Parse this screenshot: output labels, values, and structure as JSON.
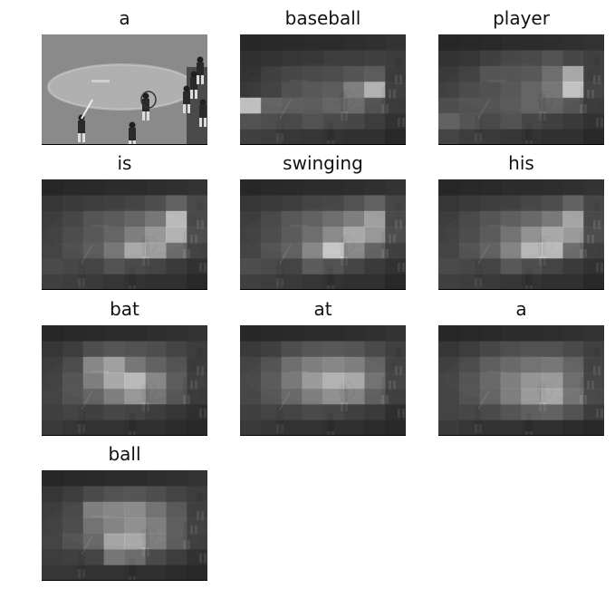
{
  "figure": {
    "panels": [
      {
        "word": "a",
        "scene": "original",
        "attention": null
      },
      {
        "word": "baseball",
        "scene": "heatmap",
        "attention": [
          [
            0.05,
            0.06,
            0.07,
            0.08,
            0.08,
            0.09,
            0.1,
            0.12
          ],
          [
            0.1,
            0.12,
            0.14,
            0.15,
            0.18,
            0.18,
            0.2,
            0.18
          ],
          [
            0.12,
            0.18,
            0.22,
            0.24,
            0.26,
            0.3,
            0.35,
            0.2
          ],
          [
            0.15,
            0.2,
            0.28,
            0.32,
            0.35,
            0.55,
            0.85,
            0.22
          ],
          [
            0.95,
            0.4,
            0.36,
            0.35,
            0.4,
            0.45,
            0.3,
            0.2
          ],
          [
            0.3,
            0.28,
            0.25,
            0.3,
            0.26,
            0.24,
            0.18,
            0.14
          ],
          [
            0.2,
            0.18,
            0.15,
            0.14,
            0.12,
            0.1,
            0.1,
            0.08
          ]
        ]
      },
      {
        "word": "player",
        "scene": "heatmap",
        "attention": [
          [
            0.05,
            0.06,
            0.07,
            0.08,
            0.08,
            0.09,
            0.1,
            0.12
          ],
          [
            0.12,
            0.14,
            0.2,
            0.24,
            0.26,
            0.3,
            0.24,
            0.2
          ],
          [
            0.16,
            0.2,
            0.3,
            0.3,
            0.32,
            0.45,
            0.8,
            0.22
          ],
          [
            0.2,
            0.25,
            0.28,
            0.32,
            0.4,
            0.5,
            0.95,
            0.25
          ],
          [
            0.28,
            0.3,
            0.3,
            0.34,
            0.4,
            0.4,
            0.32,
            0.2
          ],
          [
            0.4,
            0.32,
            0.25,
            0.3,
            0.24,
            0.2,
            0.16,
            0.14
          ],
          [
            0.22,
            0.18,
            0.16,
            0.14,
            0.12,
            0.1,
            0.1,
            0.08
          ]
        ]
      },
      {
        "word": "is",
        "scene": "heatmap",
        "attention": [
          [
            0.05,
            0.06,
            0.07,
            0.08,
            0.08,
            0.09,
            0.1,
            0.12
          ],
          [
            0.14,
            0.16,
            0.18,
            0.2,
            0.22,
            0.28,
            0.4,
            0.25
          ],
          [
            0.18,
            0.22,
            0.3,
            0.34,
            0.4,
            0.5,
            0.9,
            0.28
          ],
          [
            0.2,
            0.26,
            0.32,
            0.4,
            0.55,
            0.7,
            0.85,
            0.3
          ],
          [
            0.22,
            0.28,
            0.35,
            0.5,
            0.8,
            0.75,
            0.45,
            0.24
          ],
          [
            0.26,
            0.24,
            0.22,
            0.3,
            0.26,
            0.22,
            0.16,
            0.14
          ],
          [
            0.2,
            0.18,
            0.16,
            0.14,
            0.12,
            0.1,
            0.1,
            0.08
          ]
        ]
      },
      {
        "word": "swinging",
        "scene": "heatmap",
        "attention": [
          [
            0.05,
            0.06,
            0.07,
            0.08,
            0.08,
            0.09,
            0.1,
            0.12
          ],
          [
            0.14,
            0.16,
            0.18,
            0.22,
            0.24,
            0.3,
            0.4,
            0.24
          ],
          [
            0.18,
            0.24,
            0.32,
            0.38,
            0.45,
            0.55,
            0.75,
            0.28
          ],
          [
            0.2,
            0.26,
            0.34,
            0.45,
            0.62,
            0.8,
            0.7,
            0.3
          ],
          [
            0.22,
            0.3,
            0.38,
            0.6,
            0.98,
            0.62,
            0.4,
            0.22
          ],
          [
            0.28,
            0.26,
            0.22,
            0.36,
            0.3,
            0.22,
            0.16,
            0.14
          ],
          [
            0.2,
            0.18,
            0.16,
            0.14,
            0.12,
            0.1,
            0.1,
            0.08
          ]
        ]
      },
      {
        "word": "his",
        "scene": "heatmap",
        "attention": [
          [
            0.05,
            0.06,
            0.07,
            0.08,
            0.08,
            0.09,
            0.1,
            0.12
          ],
          [
            0.14,
            0.16,
            0.18,
            0.2,
            0.24,
            0.28,
            0.4,
            0.24
          ],
          [
            0.18,
            0.24,
            0.3,
            0.36,
            0.42,
            0.52,
            0.78,
            0.28
          ],
          [
            0.2,
            0.26,
            0.34,
            0.48,
            0.66,
            0.8,
            0.72,
            0.3
          ],
          [
            0.22,
            0.3,
            0.38,
            0.58,
            0.88,
            0.9,
            0.45,
            0.22
          ],
          [
            0.26,
            0.24,
            0.22,
            0.34,
            0.28,
            0.22,
            0.16,
            0.14
          ],
          [
            0.2,
            0.18,
            0.16,
            0.14,
            0.12,
            0.1,
            0.1,
            0.08
          ]
        ]
      },
      {
        "word": "bat",
        "scene": "heatmap",
        "attention": [
          [
            0.05,
            0.06,
            0.07,
            0.08,
            0.08,
            0.09,
            0.1,
            0.12
          ],
          [
            0.14,
            0.18,
            0.28,
            0.32,
            0.3,
            0.28,
            0.22,
            0.18
          ],
          [
            0.18,
            0.26,
            0.6,
            0.75,
            0.5,
            0.38,
            0.3,
            0.2
          ],
          [
            0.2,
            0.3,
            0.55,
            0.8,
            0.9,
            0.6,
            0.35,
            0.22
          ],
          [
            0.22,
            0.3,
            0.4,
            0.55,
            0.7,
            0.5,
            0.32,
            0.2
          ],
          [
            0.2,
            0.22,
            0.2,
            0.24,
            0.22,
            0.18,
            0.14,
            0.12
          ],
          [
            0.16,
            0.14,
            0.12,
            0.12,
            0.1,
            0.1,
            0.08,
            0.08
          ]
        ]
      },
      {
        "word": "at",
        "scene": "heatmap",
        "attention": [
          [
            0.05,
            0.06,
            0.07,
            0.08,
            0.08,
            0.09,
            0.1,
            0.12
          ],
          [
            0.16,
            0.2,
            0.28,
            0.32,
            0.34,
            0.32,
            0.26,
            0.2
          ],
          [
            0.22,
            0.3,
            0.45,
            0.55,
            0.6,
            0.55,
            0.4,
            0.24
          ],
          [
            0.24,
            0.34,
            0.52,
            0.72,
            0.85,
            0.8,
            0.48,
            0.26
          ],
          [
            0.24,
            0.32,
            0.42,
            0.55,
            0.65,
            0.58,
            0.38,
            0.22
          ],
          [
            0.2,
            0.22,
            0.22,
            0.26,
            0.24,
            0.2,
            0.16,
            0.12
          ],
          [
            0.16,
            0.14,
            0.12,
            0.12,
            0.1,
            0.1,
            0.08,
            0.08
          ]
        ]
      },
      {
        "word": "a",
        "scene": "heatmap",
        "attention": [
          [
            0.05,
            0.06,
            0.07,
            0.08,
            0.08,
            0.09,
            0.1,
            0.12
          ],
          [
            0.14,
            0.18,
            0.24,
            0.28,
            0.3,
            0.3,
            0.26,
            0.2
          ],
          [
            0.2,
            0.26,
            0.36,
            0.42,
            0.48,
            0.5,
            0.4,
            0.24
          ],
          [
            0.22,
            0.3,
            0.42,
            0.55,
            0.68,
            0.72,
            0.45,
            0.26
          ],
          [
            0.22,
            0.3,
            0.4,
            0.55,
            0.72,
            0.8,
            0.5,
            0.28
          ],
          [
            0.22,
            0.24,
            0.26,
            0.32,
            0.38,
            0.4,
            0.3,
            0.2
          ],
          [
            0.16,
            0.14,
            0.12,
            0.12,
            0.1,
            0.1,
            0.08,
            0.08
          ]
        ]
      },
      {
        "word": "ball",
        "scene": "heatmap",
        "attention": [
          [
            0.05,
            0.06,
            0.07,
            0.08,
            0.08,
            0.09,
            0.1,
            0.12
          ],
          [
            0.14,
            0.18,
            0.26,
            0.3,
            0.32,
            0.28,
            0.22,
            0.18
          ],
          [
            0.18,
            0.24,
            0.55,
            0.6,
            0.62,
            0.48,
            0.34,
            0.22
          ],
          [
            0.2,
            0.26,
            0.48,
            0.58,
            0.65,
            0.55,
            0.36,
            0.24
          ],
          [
            0.22,
            0.3,
            0.42,
            0.78,
            0.8,
            0.55,
            0.36,
            0.22
          ],
          [
            0.18,
            0.2,
            0.22,
            0.52,
            0.46,
            0.26,
            0.18,
            0.14
          ],
          [
            0.14,
            0.14,
            0.12,
            0.12,
            0.1,
            0.1,
            0.08,
            0.08
          ]
        ]
      }
    ]
  }
}
